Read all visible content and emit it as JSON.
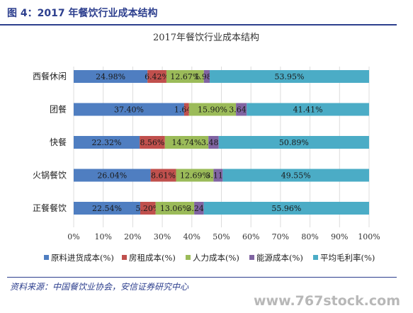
{
  "figure": {
    "label": "图 4：2017 年餐饮行业成本结构",
    "source": "资料来源：中国餐饮业协会，安信证券研究中心",
    "watermark": "www.767stock.com"
  },
  "chart_data": {
    "type": "bar",
    "orientation": "horizontal",
    "stacked": true,
    "title": "2017年餐饮行业成本结构",
    "categories": [
      "西餐休闲",
      "团餐",
      "快餐",
      "火锅餐饮",
      "正餐餐饮"
    ],
    "series": [
      {
        "name": "原料进货成本(%)",
        "color": "#4f7ec1",
        "values": [
          24.98,
          37.4,
          22.32,
          26.04,
          22.54
        ],
        "labels": [
          "24.98%",
          "37.40%",
          "22.32%",
          "26.04%",
          "22.54%"
        ]
      },
      {
        "name": "房租成本(%)",
        "color": "#c0504d",
        "values": [
          6.42,
          1.64,
          8.56,
          8.61,
          5.2
        ],
        "labels": [
          "6.42%",
          "1.64%",
          "8.56%",
          "8.61%",
          "5.20%"
        ]
      },
      {
        "name": "人力成本(%)",
        "color": "#9bbb59",
        "values": [
          12.67,
          15.9,
          14.74,
          12.69,
          13.06
        ],
        "labels": [
          "12.67%",
          "15.90%",
          "14.74%",
          "12.69%",
          "13.06%"
        ]
      },
      {
        "name": "能源成本(%)",
        "color": "#8064a2",
        "values": [
          1.98,
          3.64,
          3.48,
          3.11,
          3.24
        ],
        "labels": [
          "1.98%",
          "3.64%",
          "3.48%",
          "3.11%",
          "3.24%"
        ]
      },
      {
        "name": "平均毛利率(%)",
        "color": "#4bacc6",
        "values": [
          53.95,
          41.41,
          50.89,
          49.55,
          55.96
        ],
        "labels": [
          "53.95%",
          "41.41%",
          "50.89%",
          "49.55%",
          "55.96%"
        ]
      }
    ],
    "xlim": [
      0,
      100
    ],
    "xticks": [
      "0%",
      "10%",
      "20%",
      "30%",
      "40%",
      "50%",
      "60%",
      "70%",
      "80%",
      "90%",
      "100%"
    ],
    "grid": true,
    "legend_position": "bottom"
  }
}
